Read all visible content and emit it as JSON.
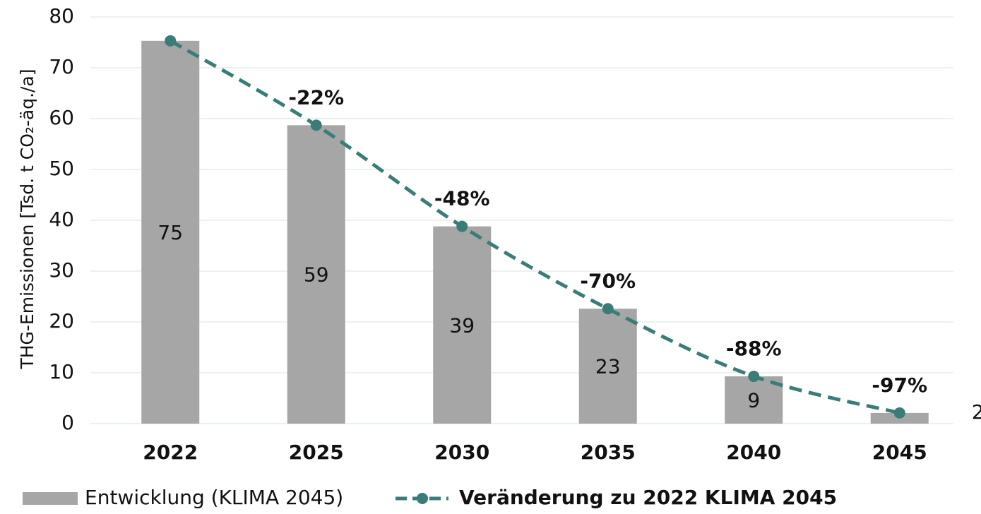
{
  "chart_data": {
    "type": "bar_line",
    "y_axis_label": "THG-Emissionen [Tsd. t CO₂-äq./a]",
    "categories": [
      "2022",
      "2025",
      "2030",
      "2035",
      "2040",
      "2045"
    ],
    "series": [
      {
        "name": "Entwicklung (KLIMA 2045)",
        "type": "bar",
        "color": "#a6a6a6",
        "values": [
          75.3,
          58.7,
          38.8,
          22.6,
          9.3,
          2.1
        ],
        "value_labels": [
          "75",
          "59",
          "39",
          "23",
          "9",
          "2"
        ]
      },
      {
        "name": "Veränderung zu 2022 KLIMA 2045",
        "type": "line",
        "color": "#3a7d78",
        "dashed": true,
        "values": [
          75.3,
          58.7,
          38.8,
          22.6,
          9.3,
          2.1
        ],
        "annotations": [
          null,
          "-22%",
          "-48%",
          "-70%",
          "-88%",
          "-97%"
        ]
      }
    ],
    "ylim": [
      0,
      80
    ],
    "yticks": [
      0,
      10,
      20,
      30,
      40,
      50,
      60,
      70,
      80
    ],
    "grid": true,
    "legend": "bottom"
  }
}
